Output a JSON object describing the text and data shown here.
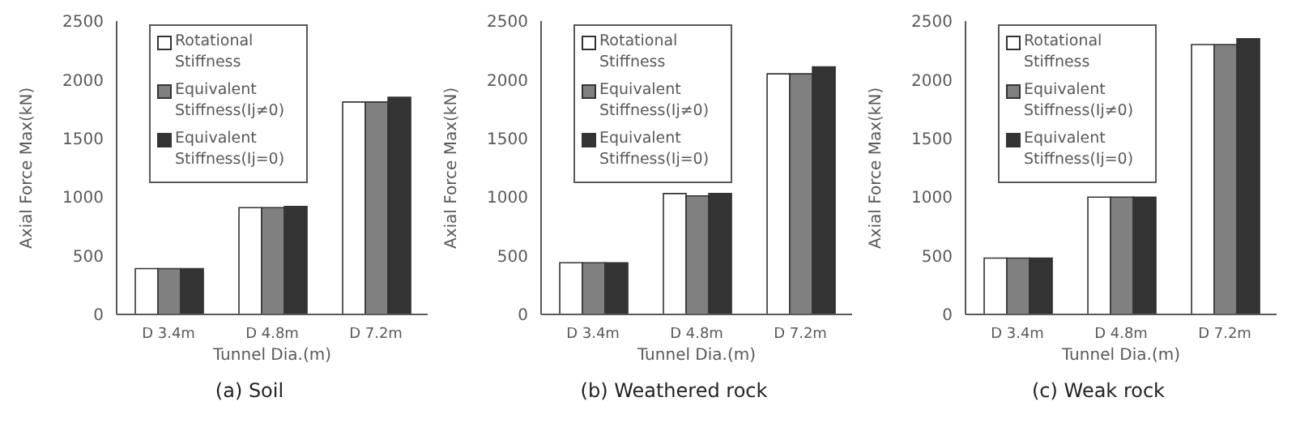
{
  "chart_data": [
    {
      "type": "bar",
      "title": "(a) Soil",
      "xlabel": "Tunnel Dia.(m)",
      "ylabel": "Axial Force Max(kN)",
      "categories": [
        "D 3.4m",
        "D 4.8m",
        "D 7.2m"
      ],
      "series": [
        {
          "name": "Rotational Stiffness",
          "color": "#ffffff",
          "values": [
            390,
            910,
            1810
          ]
        },
        {
          "name": "Equivalent Stiffness(Ij≠0)",
          "color": "#808080",
          "values": [
            390,
            910,
            1810
          ]
        },
        {
          "name": "Equivalent Stiffness(Ij=0)",
          "color": "#333333",
          "values": [
            390,
            920,
            1850
          ]
        }
      ],
      "ylim": [
        0,
        2500
      ],
      "yticks": [
        0,
        500,
        1000,
        1500,
        2000,
        2500
      ],
      "grid": false,
      "legend": "top left"
    },
    {
      "type": "bar",
      "title": "(b) Weathered rock",
      "xlabel": "Tunnel Dia.(m)",
      "ylabel": "Axial Force Max(kN)",
      "categories": [
        "D 3.4m",
        "D 4.8m",
        "D 7.2m"
      ],
      "series": [
        {
          "name": "Rotational Stiffness",
          "color": "#ffffff",
          "values": [
            440,
            1030,
            2050
          ]
        },
        {
          "name": "Equivalent Stiffness(Ij≠0)",
          "color": "#808080",
          "values": [
            440,
            1010,
            2050
          ]
        },
        {
          "name": "Equivalent Stiffness(Ij=0)",
          "color": "#333333",
          "values": [
            440,
            1030,
            2110
          ]
        }
      ],
      "ylim": [
        0,
        2500
      ],
      "yticks": [
        0,
        500,
        1000,
        1500,
        2000,
        2500
      ],
      "grid": false,
      "legend": "top left"
    },
    {
      "type": "bar",
      "title": "(c) Weak rock",
      "xlabel": "Tunnel Dia.(m)",
      "ylabel": "Axial Force Max(kN)",
      "categories": [
        "D 3.4m",
        "D 4.8m",
        "D 7.2m"
      ],
      "series": [
        {
          "name": "Rotational Stiffness",
          "color": "#ffffff",
          "values": [
            480,
            1000,
            2300
          ]
        },
        {
          "name": "Equivalent Stiffness(Ij≠0)",
          "color": "#808080",
          "values": [
            480,
            1000,
            2300
          ]
        },
        {
          "name": "Equivalent Stiffness(Ij=0)",
          "color": "#333333",
          "values": [
            480,
            1000,
            2350
          ]
        }
      ],
      "ylim": [
        0,
        2500
      ],
      "yticks": [
        0,
        500,
        1000,
        1500,
        2000,
        2500
      ],
      "grid": false,
      "legend": "top left"
    }
  ]
}
